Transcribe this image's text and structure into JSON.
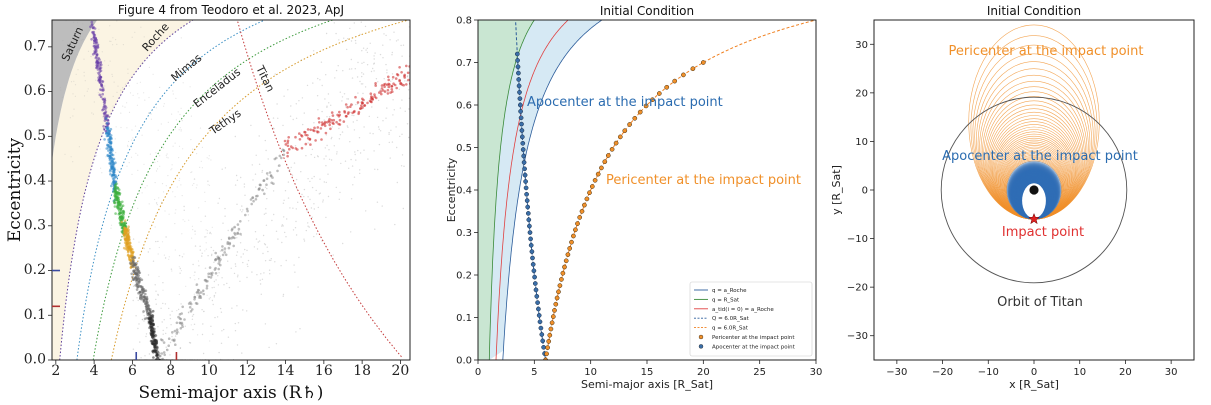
{
  "chart_data": [
    {
      "type": "scatter",
      "title": "Figure 4 from Teodoro et al. 2023, ApJ",
      "xlabel": "Semi-major axis (R♄)",
      "ylabel": "Eccentricity",
      "xlim": [
        1.8,
        20.5
      ],
      "ylim": [
        0,
        0.76
      ],
      "xticks": [
        "2",
        "4",
        "6",
        "8",
        "10",
        "12",
        "14",
        "16",
        "18",
        "20"
      ],
      "yticks": [
        "0.0",
        "0.1",
        "0.2",
        "0.3",
        "0.4",
        "0.5",
        "0.6",
        "0.7"
      ],
      "curve_labels": [
        {
          "name": "Saturn",
          "color": "#666666"
        },
        {
          "name": "Roche",
          "color": "#5b3d99"
        },
        {
          "name": "Mimas",
          "color": "#3a8fc4"
        },
        {
          "name": "Enceladus",
          "color": "#3c9a3c"
        },
        {
          "name": "Tethys",
          "color": "#d69a2a"
        },
        {
          "name": "Titan",
          "color": "#c43a3a"
        }
      ],
      "curve_q": [
        1.0,
        2.2,
        3.1,
        3.95,
        4.9
      ],
      "titan_apocenter_Q": 20.2,
      "band_segments": [
        {
          "color": "#6a3fa8",
          "x": [
            3.9,
            4.7
          ],
          "y": [
            0.75,
            0.52
          ]
        },
        {
          "color": "#2e86c8",
          "x": [
            4.7,
            5.1
          ],
          "y": [
            0.52,
            0.38
          ]
        },
        {
          "color": "#3dae3d",
          "x": [
            5.1,
            5.6
          ],
          "y": [
            0.38,
            0.29
          ]
        },
        {
          "color": "#e0a020",
          "x": [
            5.6,
            6.0
          ],
          "y": [
            0.29,
            0.22
          ]
        },
        {
          "color": "#6a6a6a",
          "x": [
            6.0,
            6.9
          ],
          "y": [
            0.22,
            0.1
          ]
        },
        {
          "color": "#2d2d2d",
          "x": [
            6.9,
            7.35
          ],
          "y": [
            0.1,
            0.0
          ]
        },
        {
          "color": "#8a8a8a",
          "x": [
            7.35,
            14.0
          ],
          "y": [
            0.0,
            0.47
          ]
        },
        {
          "color": "#cc2222",
          "x": [
            14.0,
            20.5
          ],
          "y": [
            0.47,
            0.64
          ]
        }
      ],
      "axis_markers": [
        {
          "axis": "y",
          "value": 0.2,
          "color": "#3a4aa0"
        },
        {
          "axis": "y",
          "value": 0.12,
          "color": "#b03030"
        },
        {
          "axis": "x",
          "value": 6.2,
          "color": "#3a4aa0"
        },
        {
          "axis": "x",
          "value": 8.3,
          "color": "#b03030"
        }
      ]
    },
    {
      "type": "line",
      "title": "Initial Condition",
      "xlabel": "Semi-major axis [R_Sat]",
      "ylabel": "Eccentricity",
      "xlim": [
        0,
        30
      ],
      "ylim": [
        0,
        0.8
      ],
      "xticks": [
        "0",
        "5",
        "10",
        "15",
        "20",
        "25",
        "30"
      ],
      "yticks": [
        "0.0",
        "0.1",
        "0.2",
        "0.3",
        "0.4",
        "0.5",
        "0.6",
        "0.7",
        "0.8"
      ],
      "annotations": [
        {
          "text": "Apocenter at the impact point",
          "color": "#2b6cb0"
        },
        {
          "text": "Pericenter at the impact point",
          "color": "#f0902a"
        }
      ],
      "legend_position": "lower-right",
      "legend": [
        {
          "label": "q = a_Roche",
          "color": "#2b5c9a",
          "style": "solid"
        },
        {
          "label": "q = R_Sat",
          "color": "#3a8a3a",
          "style": "solid"
        },
        {
          "label": "a_tid(i = 0) = a_Roche",
          "color": "#e04040",
          "style": "solid"
        },
        {
          "label": "Q = 6.0R_Sat",
          "color": "#2b5c9a",
          "style": "dashed"
        },
        {
          "label": "q = 6.0R_Sat",
          "color": "#f08020",
          "style": "dashed"
        },
        {
          "label": "Pericenter at the impact point",
          "color": "#f0902a",
          "style": "marker"
        },
        {
          "label": "Apocenter at the impact point",
          "color": "#3a6ea8",
          "style": "marker"
        }
      ],
      "apocenter_points": {
        "Q": 6.0,
        "e_range": [
          0,
          0.72
        ]
      },
      "pericenter_points": {
        "q": 6.0,
        "e_range": [
          0,
          0.7
        ]
      }
    },
    {
      "type": "line",
      "title": "Initial Condition",
      "xlabel": "x [R_Sat]",
      "ylabel": "y [R_Sat]",
      "xlim": [
        -35,
        35
      ],
      "ylim": [
        -35,
        35
      ],
      "xticks": [
        "−30",
        "−20",
        "−10",
        "0",
        "10",
        "20",
        "30"
      ],
      "yticks": [
        "−30",
        "−20",
        "−10",
        "0",
        "10",
        "20",
        "30"
      ],
      "annotations": [
        {
          "text": "Pericenter at the impact point",
          "color": "#f0902a"
        },
        {
          "text": "Apocenter at the impact point",
          "color": "#2b6cb0"
        },
        {
          "text": "Impact point",
          "color": "#e03030"
        },
        {
          "text": "Orbit of Titan",
          "color": "#333333"
        }
      ],
      "titan_orbit_radius": 20.3,
      "impact_point": [
        0,
        -6
      ]
    }
  ]
}
